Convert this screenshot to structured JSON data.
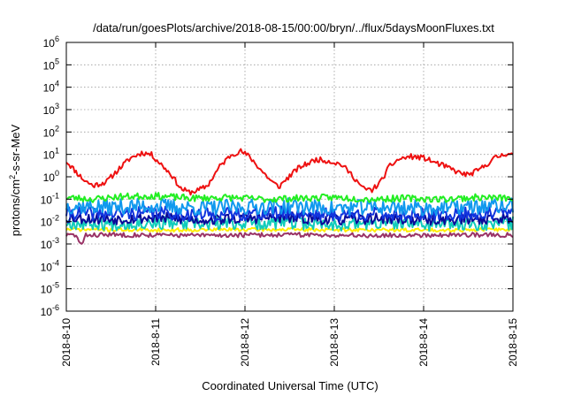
{
  "chart_data": {
    "type": "line",
    "title": "/data/run/goesPlots/archive/2018-08-15/00:00/bryn/../flux/5daysMoonFluxes.txt",
    "xlabel": "Coordinated Universal Time (UTC)",
    "ylabel_parts": {
      "pre": "protons/cm",
      "sup": "2",
      "post": "-s-sr-MeV"
    },
    "y_scale": "log",
    "ylim": [
      1e-06,
      1000000.0
    ],
    "y_tick_exponents": [
      -6,
      -5,
      -4,
      -3,
      -2,
      -1,
      0,
      1,
      2,
      3,
      4,
      5,
      6
    ],
    "y_tick_base": "10",
    "x_unit": "days",
    "xlim": [
      0,
      5
    ],
    "x_tick_labels": [
      "2018-8-10",
      "2018-8-11",
      "2018-8-12",
      "2018-8-13",
      "2018-8-14",
      "2018-8-15"
    ],
    "grid": true,
    "legend": "none",
    "series": [
      {
        "color": "#ee1111",
        "width": 2,
        "noise": 0.12,
        "seed": 11,
        "x": [
          0,
          0.12,
          0.2,
          0.3,
          0.45,
          0.6,
          0.72,
          0.85,
          0.95,
          1.05,
          1.18,
          1.28,
          1.38,
          1.48,
          1.58,
          1.72,
          1.85,
          1.95,
          2.05,
          2.18,
          2.3,
          2.38,
          2.45,
          2.6,
          2.8,
          2.95,
          3.08,
          3.2,
          3.32,
          3.42,
          3.52,
          3.62,
          3.72,
          3.85,
          4.0,
          4.15,
          4.28,
          4.4,
          4.5,
          4.62,
          4.8,
          4.95,
          5.0
        ],
        "y": [
          5,
          1.5,
          0.7,
          0.4,
          0.6,
          2.5,
          7,
          12,
          10,
          4,
          1.2,
          0.3,
          0.2,
          0.25,
          0.4,
          3,
          10,
          14,
          8,
          2,
          0.6,
          0.35,
          0.7,
          2.5,
          6,
          5,
          3.5,
          1.2,
          0.3,
          0.25,
          0.6,
          3,
          6,
          8,
          7,
          4,
          2.5,
          1.5,
          1.2,
          2,
          7,
          12,
          9
        ]
      },
      {
        "color": "#22ee22",
        "width": 2,
        "noise": 0.15,
        "seed": 23,
        "x": [
          0,
          0.3,
          0.6,
          1.0,
          1.4,
          1.8,
          2.2,
          2.6,
          3.0,
          3.4,
          3.8,
          4.2,
          4.6,
          5.0
        ],
        "y": [
          0.12,
          0.1,
          0.13,
          0.14,
          0.11,
          0.12,
          0.1,
          0.11,
          0.12,
          0.1,
          0.11,
          0.1,
          0.12,
          0.11
        ]
      },
      {
        "color": "#1199ee",
        "width": 2,
        "noise": 0.35,
        "seed": 37,
        "x": [
          0,
          0.5,
          1.0,
          1.5,
          2.0,
          2.5,
          3.0,
          3.5,
          4.0,
          4.5,
          5.0
        ],
        "y": [
          0.05,
          0.045,
          0.05,
          0.04,
          0.045,
          0.05,
          0.04,
          0.045,
          0.04,
          0.045,
          0.05
        ]
      },
      {
        "color": "#1133dd",
        "width": 2,
        "noise": 0.3,
        "seed": 41,
        "x": [
          0,
          0.5,
          1.0,
          1.5,
          2.0,
          2.5,
          3.0,
          3.5,
          4.0,
          4.5,
          5.0
        ],
        "y": [
          0.025,
          0.022,
          0.025,
          0.02,
          0.022,
          0.025,
          0.02,
          0.022,
          0.02,
          0.022,
          0.024
        ]
      },
      {
        "color": "#0a0a99",
        "width": 2,
        "noise": 0.25,
        "seed": 53,
        "x": [
          0,
          0.5,
          1.0,
          1.5,
          2.0,
          2.5,
          3.0,
          3.5,
          4.0,
          4.5,
          5.0
        ],
        "y": [
          0.015,
          0.013,
          0.015,
          0.012,
          0.014,
          0.015,
          0.012,
          0.014,
          0.012,
          0.013,
          0.014
        ]
      },
      {
        "color": "#11ccbb",
        "width": 2,
        "noise": 0.3,
        "seed": 67,
        "x": [
          0,
          0.5,
          1.0,
          1.5,
          2.0,
          2.5,
          3.0,
          3.5,
          4.0,
          4.5,
          5.0
        ],
        "y": [
          0.009,
          0.008,
          0.009,
          0.0075,
          0.0085,
          0.009,
          0.0075,
          0.0085,
          0.0075,
          0.008,
          0.0085
        ]
      },
      {
        "color": "#ffee00",
        "width": 2,
        "noise": 0.08,
        "seed": 71,
        "x": [
          0,
          1.0,
          2.0,
          3.0,
          4.0,
          5.0
        ],
        "y": [
          0.0045,
          0.0042,
          0.0044,
          0.0043,
          0.0042,
          0.0044
        ]
      },
      {
        "color": "#993366",
        "width": 2,
        "noise": 0.1,
        "seed": 83,
        "x": [
          0,
          0.1,
          0.15,
          0.18,
          0.22,
          0.5,
          1.0,
          1.5,
          2.0,
          2.5,
          3.0,
          3.5,
          4.0,
          4.5,
          5.0
        ],
        "y": [
          0.0025,
          0.0025,
          0.0012,
          0.0009,
          0.0025,
          0.0026,
          0.0025,
          0.0024,
          0.0025,
          0.0026,
          0.0025,
          0.0024,
          0.0025,
          0.0026,
          0.0025
        ]
      }
    ]
  }
}
